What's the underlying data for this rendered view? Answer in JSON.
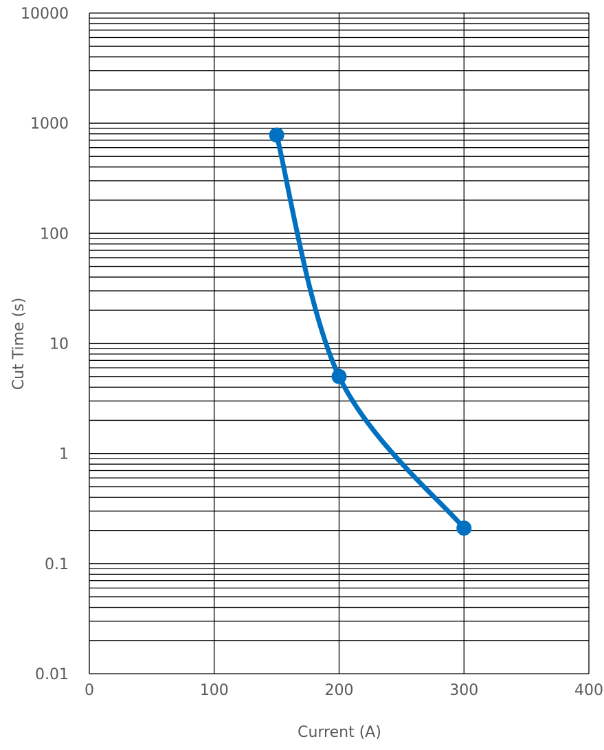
{
  "chart_data": {
    "type": "scatter",
    "title": "",
    "xlabel": "Current (A)",
    "ylabel": "Cut Time (s)",
    "xlim": [
      0,
      400
    ],
    "ylim": [
      0.01,
      10000
    ],
    "y_scale": "log",
    "x_ticks": [
      "0",
      "100",
      "200",
      "300",
      "400"
    ],
    "y_ticks": [
      "10000",
      "1000",
      "100",
      "10",
      "1",
      "0.1",
      "0.01"
    ],
    "x_tick_values": [
      0,
      100,
      200,
      300,
      400
    ],
    "y_tick_values": [
      10000,
      1000,
      100,
      10,
      1,
      0.1,
      0.01
    ],
    "grid": true,
    "legend": "none",
    "smooth_line": true,
    "series": [
      {
        "x": [
          150,
          200,
          300
        ],
        "y": [
          780,
          5,
          0.21
        ],
        "color": "#0070C0"
      }
    ]
  }
}
